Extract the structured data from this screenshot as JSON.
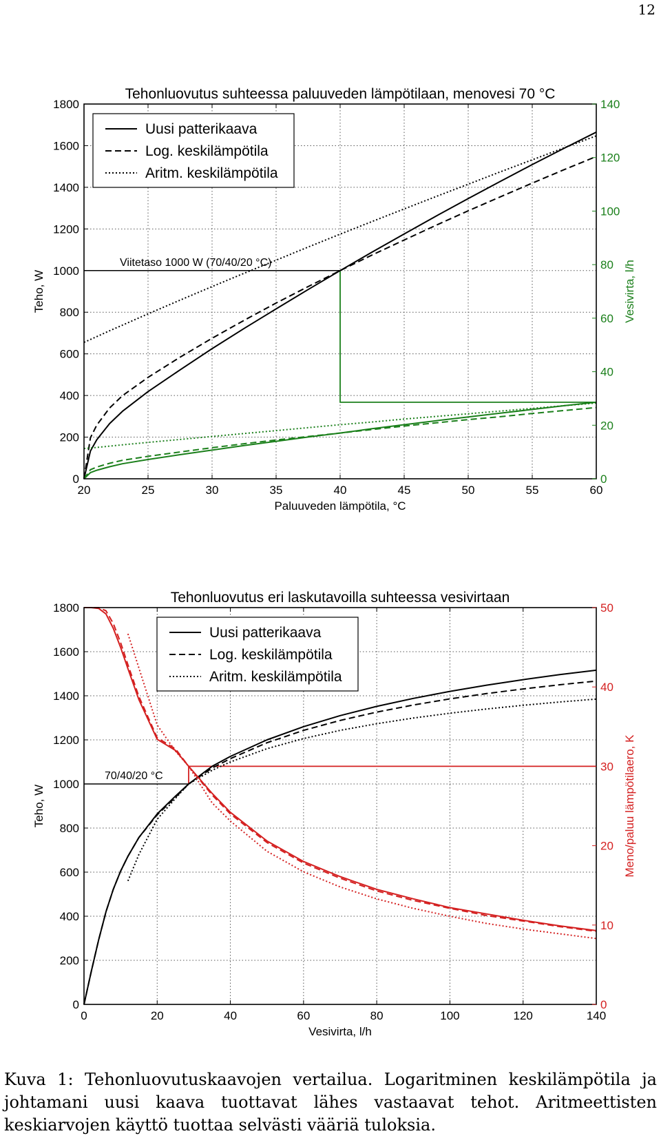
{
  "page_number": "12",
  "caption": {
    "label": "Kuva 1:",
    "text": "Tehonluovutuskaavojen vertailua. Logaritminen keskilämpötila ja johtamani uusi kaava tuottavat lähes vastaavat tehot. Aritmeettisten keskiarvojen käyttö tuottaa selvästi vääriä tuloksia."
  },
  "chart_data": [
    {
      "type": "line",
      "title": "Tehonluovutus suhteessa paluuveden lämpötilaan, menovesi 70 °C",
      "xlabel": "Paluuveden lämpötila, °C",
      "ylabel": "Teho, W",
      "y2label": "Vesivirta, l/h",
      "xlim": [
        20,
        60
      ],
      "ylim": [
        0,
        1800
      ],
      "y2lim": [
        0,
        140
      ],
      "xticks": [
        "20",
        "25",
        "30",
        "35",
        "40",
        "45",
        "50",
        "55",
        "60"
      ],
      "yticks": [
        "0",
        "200",
        "400",
        "600",
        "800",
        "1000",
        "1200",
        "1400",
        "1600",
        "1800"
      ],
      "y2ticks": [
        "0",
        "20",
        "40",
        "60",
        "80",
        "100",
        "120",
        "140"
      ],
      "grid": true,
      "legend_position": "top-left",
      "legend": [
        {
          "label": "Uusi patterikaava",
          "style": "solid"
        },
        {
          "label": "Log. keskilämpötila",
          "style": "dashed"
        },
        {
          "label": "Aritm. keskilämpötila",
          "style": "dotted"
        }
      ],
      "colors": {
        "power": "#000000",
        "flow": "#1a7f1a"
      },
      "annotation": "Viitetaso 1000 W (70/40/20 °C)",
      "reference": {
        "x": 40,
        "power": 1000,
        "flow": 28.6
      },
      "x": [
        20,
        20.5,
        21,
        22,
        23,
        25,
        27.5,
        30,
        32.5,
        35,
        37.5,
        40,
        42.5,
        45,
        47.5,
        50,
        52.5,
        55,
        57.5,
        60
      ],
      "series": [
        {
          "name": "Uusi patterikaava",
          "axis": "left",
          "style": "solid",
          "values": [
            0,
            133,
            188,
            265,
            324,
            419,
            523,
            625,
            722,
            816,
            909,
            1000,
            1089,
            1176,
            1262,
            1346,
            1428,
            1509,
            1588,
            1665
          ]
        },
        {
          "name": "Log. keskilämpötila",
          "axis": "left",
          "style": "dashed",
          "values": [
            0,
            197,
            258,
            340,
            399,
            487,
            584,
            675,
            761,
            844,
            923,
            1000,
            1075,
            1147,
            1218,
            1287,
            1354,
            1420,
            1485,
            1548
          ]
        },
        {
          "name": "Aritm. keskilämpötila",
          "axis": "left",
          "style": "dotted",
          "values": [
            655,
            669,
            683,
            711,
            738,
            792,
            858,
            923,
            987,
            1050,
            1113,
            1175,
            1236,
            1296,
            1356,
            1415,
            1474,
            1532,
            1590,
            1647
          ]
        },
        {
          "name": "Uusi patterikaava",
          "axis": "right",
          "style": "solid",
          "values": [
            0,
            2.3,
            3.2,
            4.5,
            5.6,
            7.2,
            9.0,
            10.7,
            12.4,
            14.0,
            15.6,
            17.1,
            18.7,
            20.2,
            21.7,
            23.1,
            24.5,
            25.9,
            27.3,
            28.6
          ]
        },
        {
          "name": "Log. keskilämpötila",
          "axis": "right",
          "style": "dashed",
          "values": [
            0,
            3.4,
            4.4,
            5.8,
            6.9,
            8.4,
            10.0,
            11.6,
            13.1,
            14.5,
            15.8,
            17.1,
            18.4,
            19.7,
            20.9,
            22.1,
            23.2,
            24.4,
            25.5,
            26.6
          ]
        },
        {
          "name": "Aritm. keskilämpötila",
          "axis": "right",
          "style": "dotted",
          "values": [
            11.3,
            11.5,
            11.7,
            12.2,
            12.7,
            13.6,
            14.7,
            15.8,
            16.9,
            18.0,
            19.1,
            20.2,
            21.2,
            22.3,
            23.3,
            24.3,
            25.3,
            26.3,
            27.3,
            28.3
          ]
        }
      ]
    },
    {
      "type": "line",
      "title": "Tehonluovutus eri laskutavoilla suhteessa vesivirtaan",
      "xlabel": "Vesivirta, l/h",
      "ylabel": "Teho, W",
      "y2label": "Meno/paluu lämpötilaero, K",
      "xlim": [
        0,
        140
      ],
      "ylim": [
        0,
        1800
      ],
      "y2lim": [
        0,
        50
      ],
      "xticks": [
        "0",
        "20",
        "40",
        "60",
        "80",
        "100",
        "120",
        "140"
      ],
      "yticks": [
        "0",
        "200",
        "400",
        "600",
        "800",
        "1000",
        "1200",
        "1400",
        "1600",
        "1800"
      ],
      "y2ticks": [
        "0",
        "10",
        "20",
        "30",
        "40",
        "50"
      ],
      "grid": true,
      "legend_position": "top-left",
      "legend": [
        {
          "label": "Uusi patterikaava",
          "style": "solid"
        },
        {
          "label": "Log. keskilämpötila",
          "style": "dashed"
        },
        {
          "label": "Aritm. keskilämpötila",
          "style": "dotted"
        }
      ],
      "colors": {
        "power": "#000000",
        "deltaT": "#d42020"
      },
      "annotation": "70/40/20 °C",
      "reference": {
        "x": 28.6,
        "power": 1000,
        "deltaT": 30
      },
      "x": [
        0,
        2,
        4,
        6,
        8,
        10,
        12,
        15,
        20,
        25,
        28.6,
        35,
        40,
        50,
        60,
        70,
        80,
        90,
        100,
        110,
        120,
        130,
        140
      ],
      "series": [
        {
          "name": "Uusi patterikaava",
          "axis": "left",
          "style": "solid",
          "values": [
            0,
            150,
            293,
            420,
            522,
            604,
            672,
            757,
            864,
            945,
            1000,
            1080,
            1125,
            1200,
            1260,
            1310,
            1352,
            1388,
            1420,
            1448,
            1473,
            1496,
            1516
          ]
        },
        {
          "name": "Log. keskilämpötila",
          "axis": "left",
          "style": "dashed",
          "values": [
            0,
            150,
            293,
            420,
            522,
            604,
            672,
            757,
            860,
            940,
            1000,
            1072,
            1115,
            1187,
            1243,
            1288,
            1326,
            1358,
            1386,
            1410,
            1431,
            1450,
            1467
          ]
        },
        {
          "name": "Aritm. keskilämpötila",
          "axis": "left",
          "style": "dotted",
          "values": [
            null,
            null,
            null,
            null,
            null,
            null,
            560,
            680,
            840,
            935,
            1000,
            1062,
            1100,
            1160,
            1206,
            1243,
            1273,
            1299,
            1321,
            1340,
            1357,
            1372,
            1385
          ]
        },
        {
          "name": "Uusi patterikaava",
          "axis": "right",
          "style": "solid",
          "values": [
            50,
            50,
            49.9,
            49.2,
            47.4,
            45.0,
            42.3,
            38.4,
            33.4,
            32.0,
            30.0,
            26.6,
            24.2,
            20.6,
            18.0,
            16.1,
            14.5,
            13.3,
            12.2,
            11.4,
            10.6,
            9.9,
            9.3
          ]
        },
        {
          "name": "Log. keskilämpötila",
          "axis": "right",
          "style": "dashed",
          "values": [
            50,
            50,
            50,
            49.6,
            48.0,
            45.6,
            42.8,
            38.8,
            33.6,
            32.2,
            30.0,
            26.4,
            24.0,
            20.4,
            17.8,
            15.9,
            14.3,
            13.1,
            12.1,
            11.2,
            10.5,
            9.8,
            9.2
          ]
        },
        {
          "name": "Aritm. keskilämpötila",
          "axis": "right",
          "style": "dotted",
          "values": [
            null,
            null,
            null,
            null,
            null,
            null,
            46.7,
            42.4,
            35.2,
            31.9,
            30.0,
            25.4,
            23.1,
            19.3,
            16.7,
            14.8,
            13.3,
            12.1,
            11.1,
            10.2,
            9.5,
            8.9,
            8.3
          ]
        }
      ]
    }
  ]
}
